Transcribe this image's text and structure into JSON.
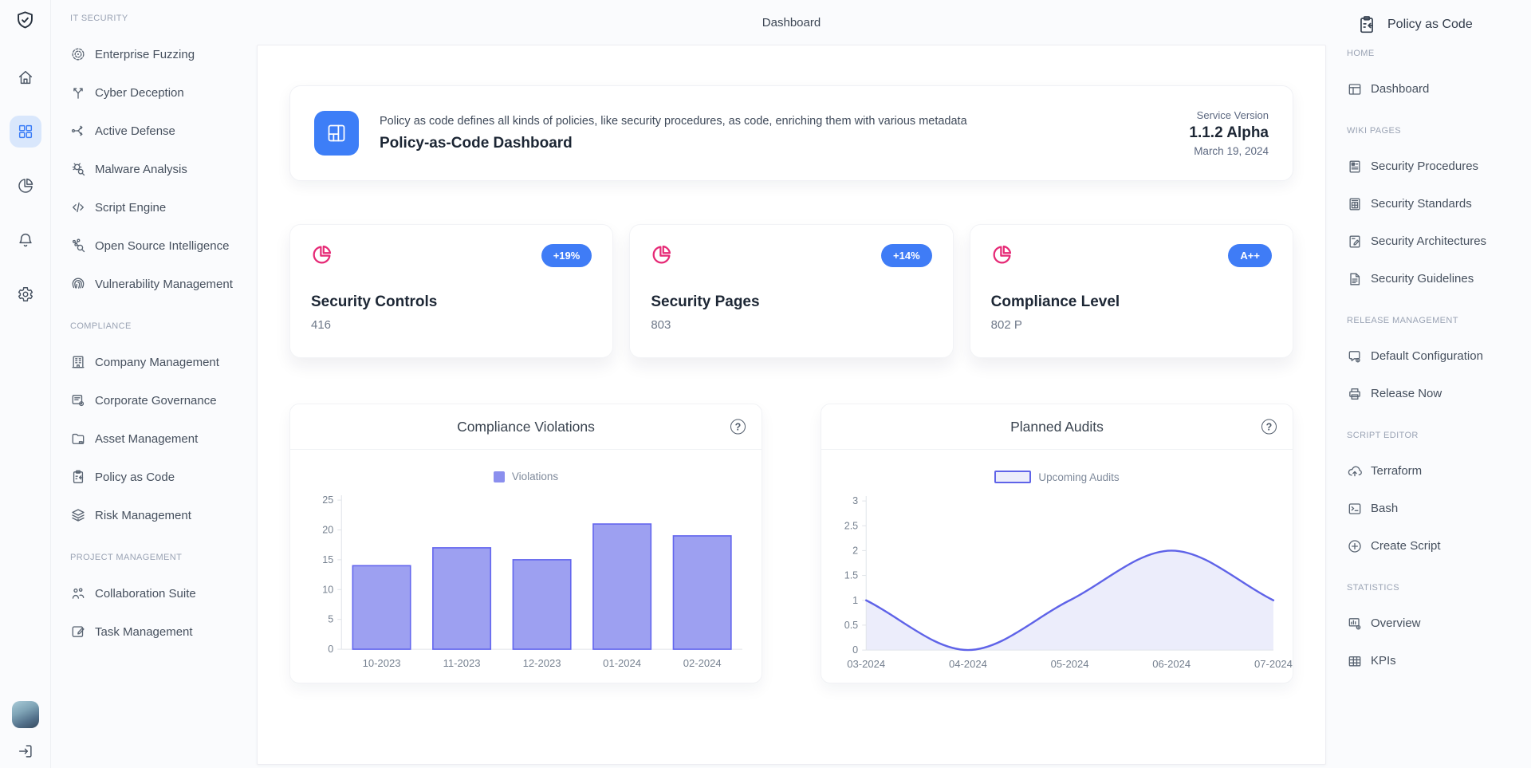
{
  "colors": {
    "accent_blue": "#3d7ef7",
    "accent_blue_light": "#d9e7fc",
    "badge_blue": "#3f7cf6",
    "pink": "#e62a76",
    "bar_fill": "#9da0f1",
    "bar_stroke": "#6366ee",
    "bar_legend": "#8b8fee",
    "line_color": "#5f63e8",
    "area_fill": "#ecedfb",
    "axis_line": "#e0e4e9",
    "axis_text": "#75808f"
  },
  "top_title": "Dashboard",
  "rail": {
    "logo_icon": "shield-check-icon",
    "items": [
      {
        "name": "home",
        "icon": "home-icon",
        "active": false
      },
      {
        "name": "apps",
        "icon": "grid-icon",
        "active": true
      },
      {
        "name": "stats",
        "icon": "pie-icon",
        "active": false
      },
      {
        "name": "notifications",
        "icon": "bell-icon",
        "active": false
      },
      {
        "name": "settings",
        "icon": "gear-icon",
        "active": false
      }
    ],
    "logout_icon": "logout-icon"
  },
  "sidebar": {
    "sections": [
      {
        "header": "IT SECURITY",
        "items": [
          {
            "label": "Enterprise Fuzzing",
            "icon": "target-icon"
          },
          {
            "label": "Cyber Deception",
            "icon": "branch-icon"
          },
          {
            "label": "Active Defense",
            "icon": "flow-icon"
          },
          {
            "label": "Malware Analysis",
            "icon": "bug-search-icon"
          },
          {
            "label": "Script Engine",
            "icon": "code-icon"
          },
          {
            "label": "Open Source Intelligence",
            "icon": "network-search-icon"
          },
          {
            "label": "Vulnerability Management",
            "icon": "fingerprint-icon"
          }
        ]
      },
      {
        "header": "COMPLIANCE",
        "items": [
          {
            "label": "Company Management",
            "icon": "building-icon"
          },
          {
            "label": "Corporate Governance",
            "icon": "list-gear-icon"
          },
          {
            "label": "Asset Management",
            "icon": "folder-icon"
          },
          {
            "label": "Policy as Code",
            "icon": "clipboard-icon"
          },
          {
            "label": "Risk Management",
            "icon": "layers-icon"
          }
        ]
      },
      {
        "header": "PROJECT MANAGEMENT",
        "items": [
          {
            "label": "Collaboration Suite",
            "icon": "people-icon"
          },
          {
            "label": "Task Management",
            "icon": "edit-icon"
          }
        ]
      }
    ]
  },
  "header_card": {
    "icon": "layout-icon",
    "description": "Policy as code defines all kinds of policies, like security procedures, as code, enriching them with various metadata",
    "title": "Policy-as-Code Dashboard",
    "service_version_label": "Service Version",
    "service_version": "1.1.2 Alpha",
    "service_date": "March 19, 2024"
  },
  "stat_cards": [
    {
      "icon": "pie-chart-icon",
      "badge": "+19%",
      "title": "Security Controls",
      "value": "416"
    },
    {
      "icon": "pie-chart-icon",
      "badge": "+14%",
      "title": "Security Pages",
      "value": "803"
    },
    {
      "icon": "pie-chart-icon",
      "badge": "A++",
      "title": "Compliance Level",
      "value": "802 P"
    }
  ],
  "chart_data": [
    {
      "type": "bar",
      "title": "Compliance Violations",
      "legend": "Violations",
      "categories": [
        "10-2023",
        "11-2023",
        "12-2023",
        "01-2024",
        "02-2024"
      ],
      "values": [
        14,
        17,
        15,
        21,
        19
      ],
      "ylim": [
        0,
        25
      ],
      "yticks": [
        0,
        5,
        10,
        15,
        20,
        25
      ],
      "legend_position": "top-center",
      "grid": false
    },
    {
      "type": "area",
      "title": "Planned Audits",
      "legend": "Upcoming Audits",
      "categories": [
        "03-2024",
        "04-2024",
        "05-2024",
        "06-2024",
        "07-2024"
      ],
      "values": [
        1,
        0,
        1,
        2,
        1
      ],
      "ylim": [
        0,
        3
      ],
      "yticks": [
        0,
        0.5,
        1,
        1.5,
        2,
        2.5,
        3
      ],
      "legend_position": "top-center",
      "grid": false
    }
  ],
  "rightbar": {
    "title": "Policy as Code",
    "icon": "clipboard-icon",
    "sections": [
      {
        "header": "HOME",
        "items": [
          {
            "label": "Dashboard",
            "icon": "window-icon"
          }
        ]
      },
      {
        "header": "WIKI PAGES",
        "items": [
          {
            "label": "Security Procedures",
            "icon": "doc-check-icon"
          },
          {
            "label": "Security Standards",
            "icon": "doc-grid-icon"
          },
          {
            "label": "Security Architectures",
            "icon": "doc-edit-icon"
          },
          {
            "label": "Security Guidelines",
            "icon": "doc-lines-icon"
          }
        ]
      },
      {
        "header": "RELEASE MANAGEMENT",
        "items": [
          {
            "label": "Default Configuration",
            "icon": "chat-gear-icon"
          },
          {
            "label": "Release Now",
            "icon": "printer-icon"
          }
        ]
      },
      {
        "header": "SCRIPT EDITOR",
        "items": [
          {
            "label": "Terraform",
            "icon": "cloud-up-icon"
          },
          {
            "label": "Bash",
            "icon": "terminal-icon"
          },
          {
            "label": "Create Script",
            "icon": "plus-circle-icon"
          }
        ]
      },
      {
        "header": "STATISTICS",
        "items": [
          {
            "label": "Overview",
            "icon": "chart-gear-icon"
          },
          {
            "label": "KPIs",
            "icon": "table-icon"
          }
        ]
      }
    ]
  }
}
